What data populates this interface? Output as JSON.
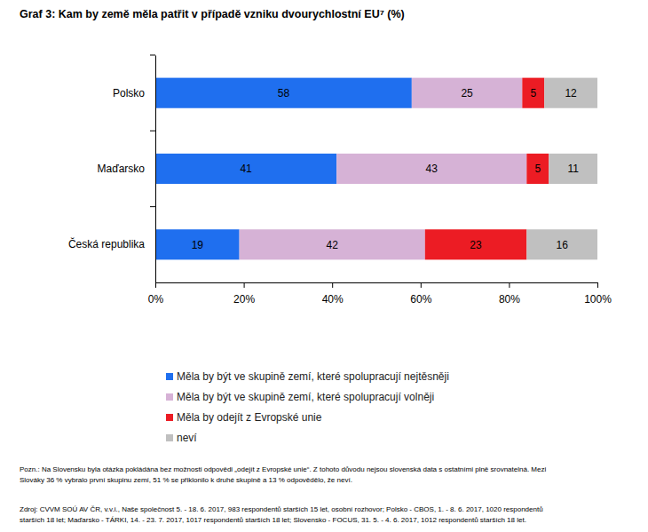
{
  "chart_data": {
    "type": "bar",
    "title": "Graf 3: Kam by země měla patřit v případě vzniku dvourychlostní EU⁷ (%)",
    "orientation": "horizontal",
    "stacked": true,
    "data_labels": true,
    "grid": false,
    "categories": [
      "Polsko",
      "Maďarsko",
      "Česká republika"
    ],
    "series": [
      {
        "name": "Měla by být ve skupině zemí, které spolupracují nejtěsněji",
        "color": "#1f6fef",
        "values": [
          58,
          41,
          19
        ]
      },
      {
        "name": "Měla by být ve skupině zemí, které spolupracují volněji",
        "color": "#d6b2d6",
        "values": [
          25,
          43,
          42
        ]
      },
      {
        "name": "Měla by odejít z Evropské unie",
        "color": "#ec1c24",
        "values": [
          5,
          5,
          23
        ]
      },
      {
        "name": "neví",
        "color": "#c0c0c0",
        "values": [
          12,
          11,
          16
        ]
      }
    ],
    "xlim": [
      0,
      100
    ],
    "xticks": [
      {
        "value": 0,
        "label": "0%"
      },
      {
        "value": 20,
        "label": "20%"
      },
      {
        "value": 40,
        "label": "40%"
      },
      {
        "value": 60,
        "label": "60%"
      },
      {
        "value": 80,
        "label": "80%"
      },
      {
        "value": 100,
        "label": "100%"
      }
    ],
    "annotations": [
      "Pozn.: Na Slovensku byla otázka pokládána bez možnosti odpovědi „odejít z Evropské unie“. Z tohoto důvodu nejsou slovenská data s ostatními plně srovnatelná. Mezi",
      "Slováky 36 % vybralo první skupinu zemí, 51 % se přiklonilo k druhé skupině a 13 % odpovědělo, že neví.",
      "Zdroj: CVVM SOÚ AV ČR, v.v.i., Naše společnost 5. - 18. 6. 2017, 983 respondentů starších 15 let, osobní rozhovor; Polsko - CBOS, 1. - 8. 6. 2017, 1020 respondentů",
      "starších 18 let; Maďarsko - TÁRKI, 14. - 23. 7. 2017, 1017 respondentů starších 18 let; Slovensko - FOCUS, 31. 5. - 4. 6. 2017, 1012 respondentů starších 18 let."
    ]
  }
}
